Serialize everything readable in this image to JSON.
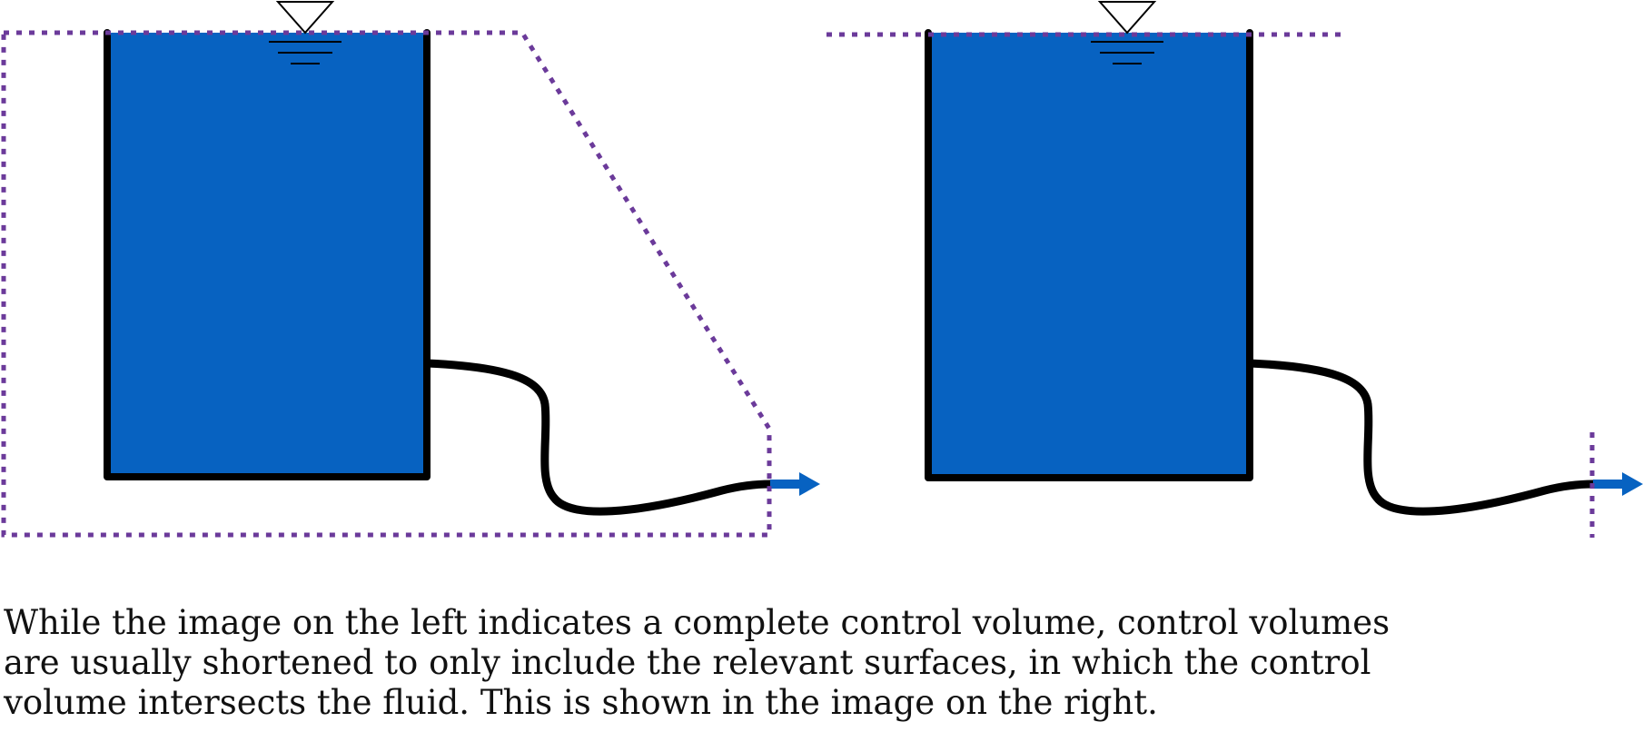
{
  "colors": {
    "water": "#0762C1",
    "tank_wall": "#000000",
    "control_volume": "#6B3A9A",
    "flow_arrow": "#0762C1",
    "text": "#111111"
  },
  "panels": [
    {
      "id": "left",
      "description_icon": "free-surface-triangle-icon",
      "control_volume": "complete"
    },
    {
      "id": "right",
      "description_icon": "free-surface-triangle-icon",
      "control_volume": "shortened"
    }
  ],
  "caption": {
    "line1": "While the image on the left indicates a complete control volume, control volumes",
    "line2": "are usually shortened to only include the relevant surfaces, in which the control",
    "line3": "volume intersects the fluid. This is shown in the image on the right."
  }
}
